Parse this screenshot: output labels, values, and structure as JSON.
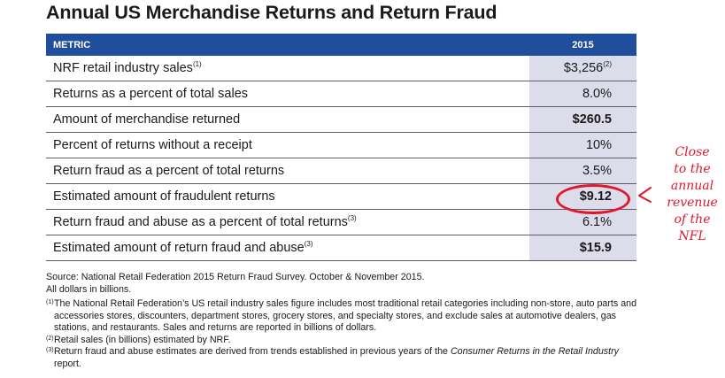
{
  "title": "Annual US Merchandise Returns and Return Fraud",
  "table": {
    "header": {
      "metric": "METRIC",
      "year": "2015"
    },
    "rows": [
      {
        "label": "NRF retail industry sales",
        "label_note": "(1)",
        "value": "$3,256",
        "value_note": "(2)",
        "bold": false
      },
      {
        "label": "Returns as a percent of total sales",
        "label_note": "",
        "value": "8.0%",
        "value_note": "",
        "bold": false
      },
      {
        "label": "Amount of merchandise returned",
        "label_note": "",
        "value": "$260.5",
        "value_note": "",
        "bold": true
      },
      {
        "label": "Percent of returns without a receipt",
        "label_note": "",
        "value": "10%",
        "value_note": "",
        "bold": false
      },
      {
        "label": "Return fraud as a percent of total returns",
        "label_note": "",
        "value": "3.5%",
        "value_note": "",
        "bold": false
      },
      {
        "label": "Estimated amount of fraudulent returns",
        "label_note": "",
        "value": "$9.12",
        "value_note": "",
        "bold": true
      },
      {
        "label": "Return fraud and abuse as a percent of total returns",
        "label_note": "(3)",
        "value": "6.1%",
        "value_note": "",
        "bold": false
      },
      {
        "label": "Estimated amount of return fraud and abuse",
        "label_note": "(3)",
        "value": "$15.9",
        "value_note": "",
        "bold": true
      }
    ]
  },
  "notes": {
    "source": "Source: National Retail Federation 2015 Return Fraud Survey. October & November 2015.",
    "units": "All dollars in billions.",
    "footnotes": [
      {
        "mark": "(1)",
        "text": "The National Retail Federation’s US retail industry sales figure includes most traditional retail categories including non-store, auto parts and accessories stores, discounters, department stores, grocery stores, and specialty stores, and exclude sales at automotive dealers, gas stations, and restaurants. Sales and returns are reported in billions of dollars."
      },
      {
        "mark": "(2)",
        "text": "Retail sales (in billions) estimated by NRF."
      },
      {
        "mark": "(3)",
        "text_before": "Return fraud and abuse estimates are derived from trends established in previous years of the ",
        "text_italic": "Consumer Returns in the Retail Industry",
        "text_after": " report."
      }
    ]
  },
  "annotation": {
    "lines": [
      "Close",
      "to the",
      "annual",
      "revenue",
      "of the",
      "NFL"
    ],
    "color": "#e0182d"
  },
  "colors": {
    "header_bg": "#1f4e9c",
    "value_col_bg": "#dcdcea"
  }
}
